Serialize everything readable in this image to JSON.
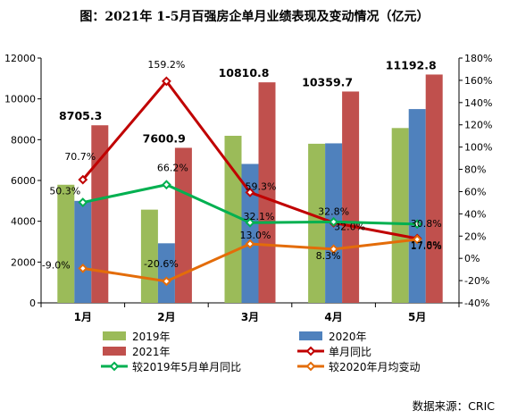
{
  "title": "图：2021年 1-5月百强房企单月业绩表现及变动情况（亿元）",
  "source": "数据来源：CRIC",
  "colors": {
    "s2019": "#9bbb59",
    "s2020": "#4f81bd",
    "s2021": "#c0504d",
    "mom": "#c00000",
    "vs2019": "#00b050",
    "vs2020": "#e36c09"
  },
  "chart_data": {
    "type": "bar",
    "categories": [
      "1月",
      "2月",
      "3月",
      "4月",
      "5月"
    ],
    "series": [
      {
        "name": "2019年",
        "type": "bar",
        "axis": "left",
        "values": [
          5790,
          4570,
          8190,
          7800,
          8570
        ]
      },
      {
        "name": "2020年",
        "type": "bar",
        "axis": "left",
        "values": [
          5000,
          2920,
          6810,
          7820,
          9500
        ]
      },
      {
        "name": "2021年",
        "type": "bar",
        "axis": "left",
        "values": [
          8705.3,
          7600.9,
          10810.8,
          10359.7,
          11192.8
        ],
        "labels": [
          "8705.3",
          "7600.9",
          "10810.8",
          "10359.7",
          "11192.8"
        ]
      },
      {
        "name": "单月同比",
        "type": "line",
        "axis": "right",
        "values": [
          70.7,
          159.2,
          59.3,
          32.0,
          17.8
        ],
        "labels": [
          "70.7%",
          "159.2%",
          "59.3%",
          "32.0%",
          "17.8%"
        ]
      },
      {
        "name": "较2019年5月单月同比",
        "type": "line",
        "axis": "right",
        "values": [
          50.3,
          66.2,
          32.1,
          32.8,
          30.8
        ],
        "labels": [
          "50.3%",
          "66.2%",
          "32.1%",
          "32.8%",
          "30.8%"
        ]
      },
      {
        "name": "较2020年月均变动",
        "type": "line",
        "axis": "right",
        "values": [
          -9.0,
          -20.6,
          13.0,
          8.3,
          17.0
        ],
        "labels": [
          "-9.0%",
          "-20.6%",
          "13.0%",
          "8.3%",
          "17.0%"
        ]
      }
    ],
    "ylim_left": [
      0,
      12000
    ],
    "yticks_left": [
      "0",
      "2000",
      "4000",
      "6000",
      "8000",
      "10000",
      "12000"
    ],
    "ylim_right": [
      -40,
      180
    ],
    "yticks_right": [
      "-40%",
      "-20%",
      "0%",
      "20%",
      "40%",
      "60%",
      "80%",
      "100%",
      "120%",
      "140%",
      "160%",
      "180%"
    ],
    "grid": false,
    "legend_position": "bottom"
  }
}
